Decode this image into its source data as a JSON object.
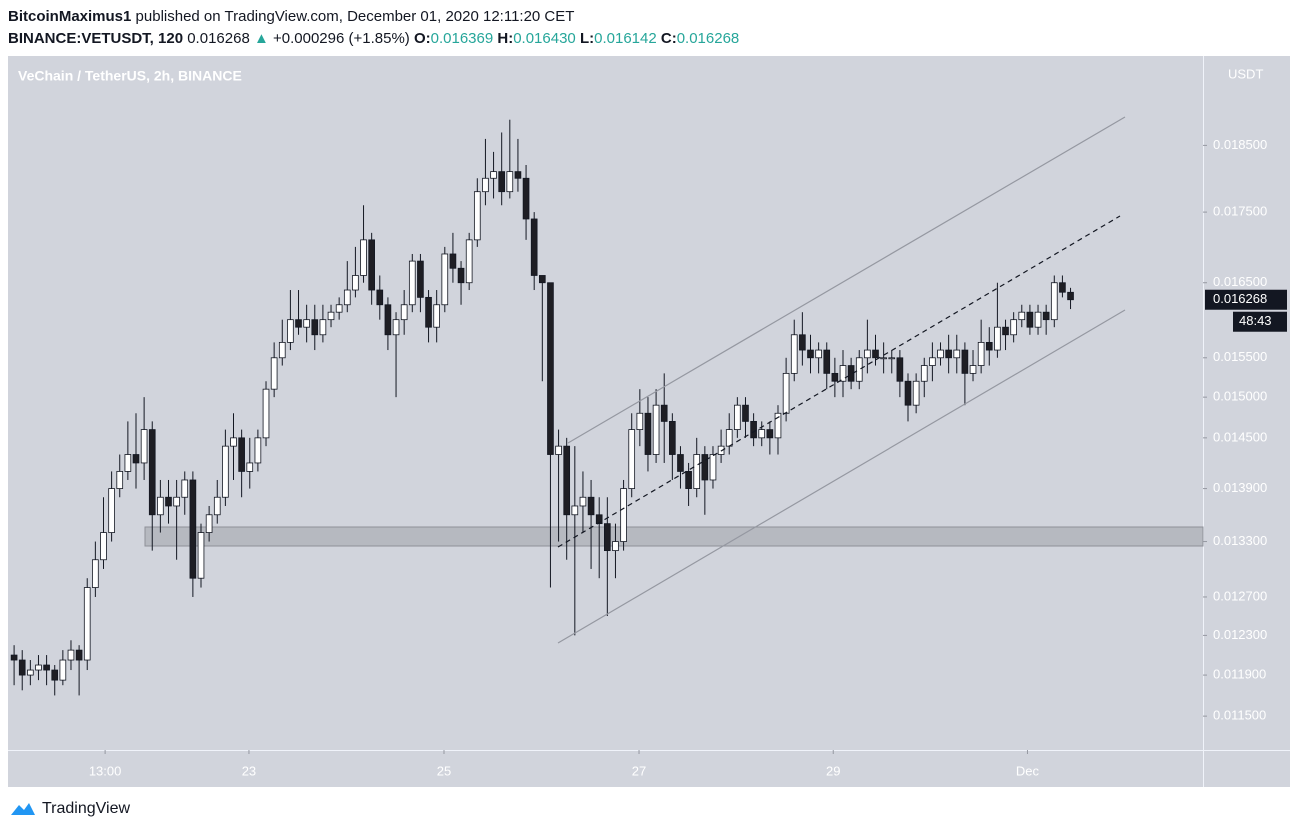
{
  "header": {
    "publisher": "BitcoinMaximus1",
    "published": "published on TradingView.com, December 01, 2020 12:11:20 CET",
    "symbol": "BINANCE:VETUSDT, 120",
    "last": "0.016268",
    "change": "+0.000296 (+1.85%)",
    "ohlc": [
      {
        "label": "O:",
        "value": "0.016369"
      },
      {
        "label": "H:",
        "value": "0.016430"
      },
      {
        "label": "L:",
        "value": "0.016142"
      },
      {
        "label": "C:",
        "value": "0.016268"
      }
    ]
  },
  "chart_data": {
    "type": "candlestick",
    "title": "VeChain / TetherUS, 2h, BINANCE",
    "y_axis_label": "USDT",
    "log_scale": true,
    "grid": false,
    "up_color": "#ffffff",
    "down_color": "#1e1e24",
    "edge_color": "#131722",
    "xlim": [
      -0.75,
      146.3
    ],
    "ylim": [
      0.01118,
      0.01993
    ],
    "xticks": [
      {
        "value": 11.2,
        "label": "13:00"
      },
      {
        "value": 28.9,
        "label": "23"
      },
      {
        "value": 52.9,
        "label": "25"
      },
      {
        "value": 76.9,
        "label": "27"
      },
      {
        "value": 100.8,
        "label": "29"
      },
      {
        "value": 124.7,
        "label": "Dec"
      }
    ],
    "yticks": [
      {
        "value": 0.0115,
        "label": "0.011500"
      },
      {
        "value": 0.0119,
        "label": "0.011900"
      },
      {
        "value": 0.0123,
        "label": "0.012300"
      },
      {
        "value": 0.0127,
        "label": "0.012700"
      },
      {
        "value": 0.0133,
        "label": "0.013300"
      },
      {
        "value": 0.0139,
        "label": "0.013900"
      },
      {
        "value": 0.0145,
        "label": "0.014500"
      },
      {
        "value": 0.015,
        "label": "0.015000"
      },
      {
        "value": 0.0155,
        "label": "0.015500"
      },
      {
        "value": 0.0165,
        "label": "0.016500"
      },
      {
        "value": 0.0175,
        "label": "0.017500"
      },
      {
        "value": 0.0185,
        "label": "0.018500"
      }
    ],
    "last_price": 0.016268,
    "countdown": "48:43",
    "open": [
      0.0121,
      0.01205,
      0.0119,
      0.01195,
      0.012,
      0.01195,
      0.01185,
      0.01205,
      0.01215,
      0.01205,
      0.0128,
      0.0131,
      0.0134,
      0.0139,
      0.0141,
      0.0143,
      0.0142,
      0.0146,
      0.0136,
      0.0138,
      0.0137,
      0.0138,
      0.014,
      0.0129,
      0.0134,
      0.0136,
      0.0138,
      0.0144,
      0.0145,
      0.0141,
      0.0142,
      0.0145,
      0.0151,
      0.0155,
      0.0157,
      0.016,
      0.0159,
      0.016,
      0.0158,
      0.016,
      0.0161,
      0.0162,
      0.0164,
      0.0166,
      0.0171,
      0.0164,
      0.0162,
      0.0158,
      0.016,
      0.0162,
      0.0168,
      0.0163,
      0.0159,
      0.0162,
      0.0169,
      0.0167,
      0.0165,
      0.0171,
      0.0178,
      0.018,
      0.0181,
      0.0178,
      0.0181,
      0.018,
      0.0174,
      0.0166,
      0.0165,
      0.0143,
      0.0144,
      0.0136,
      0.0137,
      0.0138,
      0.0136,
      0.0135,
      0.0132,
      0.0133,
      0.0139,
      0.0146,
      0.0148,
      0.0143,
      0.0149,
      0.0147,
      0.0143,
      0.0141,
      0.0139,
      0.0143,
      0.014,
      0.0143,
      0.0144,
      0.0146,
      0.0149,
      0.0147,
      0.0145,
      0.0146,
      0.0145,
      0.0148,
      0.0153,
      0.0158,
      0.0156,
      0.0155,
      0.0156,
      0.0153,
      0.0152,
      0.0154,
      0.0152,
      0.0155,
      0.0156,
      0.0155,
      0.0155,
      0.0155,
      0.0152,
      0.0149,
      0.0152,
      0.0154,
      0.0155,
      0.0156,
      0.0155,
      0.0156,
      0.0153,
      0.0154,
      0.0157,
      0.0156,
      0.0159,
      0.0158,
      0.016,
      0.0161,
      0.0159,
      0.0161,
      0.016,
      0.0165,
      0.016369
    ],
    "high": [
      0.0122,
      0.01215,
      0.01205,
      0.0121,
      0.0121,
      0.012,
      0.01215,
      0.01225,
      0.0122,
      0.0129,
      0.0133,
      0.0138,
      0.0141,
      0.0143,
      0.0147,
      0.0148,
      0.015,
      0.0147,
      0.014,
      0.014,
      0.014,
      0.0141,
      0.0141,
      0.0135,
      0.0137,
      0.014,
      0.0146,
      0.0148,
      0.0146,
      0.0145,
      0.0146,
      0.0152,
      0.0157,
      0.016,
      0.0164,
      0.0164,
      0.0162,
      0.0162,
      0.0162,
      0.0162,
      0.0163,
      0.0168,
      0.017,
      0.0176,
      0.0172,
      0.0166,
      0.0163,
      0.0161,
      0.0164,
      0.0169,
      0.0169,
      0.0164,
      0.0164,
      0.017,
      0.0172,
      0.0168,
      0.0172,
      0.018,
      0.0186,
      0.0184,
      0.0187,
      0.0189,
      0.0186,
      0.0182,
      0.0175,
      0.0166,
      0.0165,
      0.0146,
      0.0145,
      0.0144,
      0.0141,
      0.014,
      0.0138,
      0.0138,
      0.0135,
      0.014,
      0.0148,
      0.0151,
      0.015,
      0.0151,
      0.0153,
      0.0148,
      0.0144,
      0.0142,
      0.0145,
      0.0144,
      0.0144,
      0.0146,
      0.0148,
      0.015,
      0.015,
      0.0148,
      0.0147,
      0.0147,
      0.0149,
      0.0155,
      0.016,
      0.0161,
      0.0158,
      0.0157,
      0.0157,
      0.0155,
      0.0156,
      0.0155,
      0.0156,
      0.016,
      0.0158,
      0.0157,
      0.0156,
      0.0156,
      0.0153,
      0.0153,
      0.0155,
      0.0157,
      0.0157,
      0.0158,
      0.0158,
      0.0157,
      0.0156,
      0.016,
      0.0159,
      0.0165,
      0.016,
      0.0161,
      0.0162,
      0.0162,
      0.0162,
      0.0162,
      0.0166,
      0.0166,
      0.01643
    ],
    "low": [
      0.0118,
      0.01175,
      0.0118,
      0.01185,
      0.0118,
      0.0117,
      0.0118,
      0.01195,
      0.0117,
      0.01195,
      0.0127,
      0.013,
      0.0133,
      0.0138,
      0.014,
      0.0139,
      0.014,
      0.0132,
      0.0134,
      0.0135,
      0.0131,
      0.0136,
      0.0127,
      0.0128,
      0.0133,
      0.0135,
      0.0137,
      0.014,
      0.0138,
      0.0139,
      0.0141,
      0.0144,
      0.015,
      0.0154,
      0.0156,
      0.0158,
      0.0157,
      0.0156,
      0.0157,
      0.0159,
      0.016,
      0.0161,
      0.0163,
      0.0165,
      0.0162,
      0.016,
      0.0156,
      0.015,
      0.0158,
      0.0161,
      0.0161,
      0.0157,
      0.0157,
      0.0161,
      0.0165,
      0.0162,
      0.0164,
      0.017,
      0.0176,
      0.0177,
      0.0176,
      0.0177,
      0.0178,
      0.0171,
      0.0164,
      0.0152,
      0.0128,
      0.0133,
      0.0131,
      0.0123,
      0.0134,
      0.013,
      0.0129,
      0.0125,
      0.0129,
      0.0132,
      0.0138,
      0.0144,
      0.0141,
      0.0142,
      0.0142,
      0.014,
      0.0139,
      0.0137,
      0.0138,
      0.0136,
      0.0139,
      0.0142,
      0.0143,
      0.0145,
      0.0145,
      0.0144,
      0.0144,
      0.0143,
      0.0143,
      0.0147,
      0.0152,
      0.0154,
      0.0153,
      0.0153,
      0.0151,
      0.015,
      0.015,
      0.0151,
      0.0151,
      0.0153,
      0.0154,
      0.0153,
      0.0153,
      0.015,
      0.0147,
      0.0148,
      0.015,
      0.0152,
      0.0154,
      0.0153,
      0.0153,
      0.0149,
      0.0152,
      0.0153,
      0.0154,
      0.0155,
      0.0156,
      0.0157,
      0.0159,
      0.0158,
      0.0158,
      0.0158,
      0.0159,
      0.0163,
      0.016142
    ],
    "close": [
      0.01205,
      0.0119,
      0.01195,
      0.012,
      0.01195,
      0.01185,
      0.01205,
      0.01215,
      0.01205,
      0.0128,
      0.0131,
      0.0134,
      0.0139,
      0.0141,
      0.0143,
      0.0142,
      0.0146,
      0.0136,
      0.0138,
      0.0137,
      0.0138,
      0.014,
      0.0129,
      0.0134,
      0.0136,
      0.0138,
      0.0144,
      0.0145,
      0.0141,
      0.0142,
      0.0145,
      0.0151,
      0.0155,
      0.0157,
      0.016,
      0.0159,
      0.016,
      0.0158,
      0.016,
      0.0161,
      0.0162,
      0.0164,
      0.0166,
      0.0171,
      0.0164,
      0.0162,
      0.0158,
      0.016,
      0.0162,
      0.0168,
      0.0163,
      0.0159,
      0.0162,
      0.0169,
      0.0167,
      0.0165,
      0.0171,
      0.0178,
      0.018,
      0.0181,
      0.0178,
      0.0181,
      0.018,
      0.0174,
      0.0166,
      0.0165,
      0.0143,
      0.0144,
      0.0136,
      0.0137,
      0.0138,
      0.0136,
      0.0135,
      0.0132,
      0.0133,
      0.0139,
      0.0146,
      0.0148,
      0.0143,
      0.0149,
      0.0147,
      0.0143,
      0.0141,
      0.0139,
      0.0143,
      0.014,
      0.0143,
      0.0144,
      0.0146,
      0.0149,
      0.0147,
      0.0145,
      0.0146,
      0.0145,
      0.0148,
      0.0153,
      0.0158,
      0.0156,
      0.0155,
      0.0156,
      0.0153,
      0.0152,
      0.0154,
      0.0152,
      0.0155,
      0.0156,
      0.0155,
      0.0155,
      0.0155,
      0.0152,
      0.0149,
      0.0152,
      0.0154,
      0.0155,
      0.0156,
      0.0155,
      0.0156,
      0.0153,
      0.0154,
      0.0157,
      0.0156,
      0.0159,
      0.0158,
      0.016,
      0.0161,
      0.0159,
      0.0161,
      0.016,
      0.0165,
      0.01637,
      0.016268
    ]
  }
}
